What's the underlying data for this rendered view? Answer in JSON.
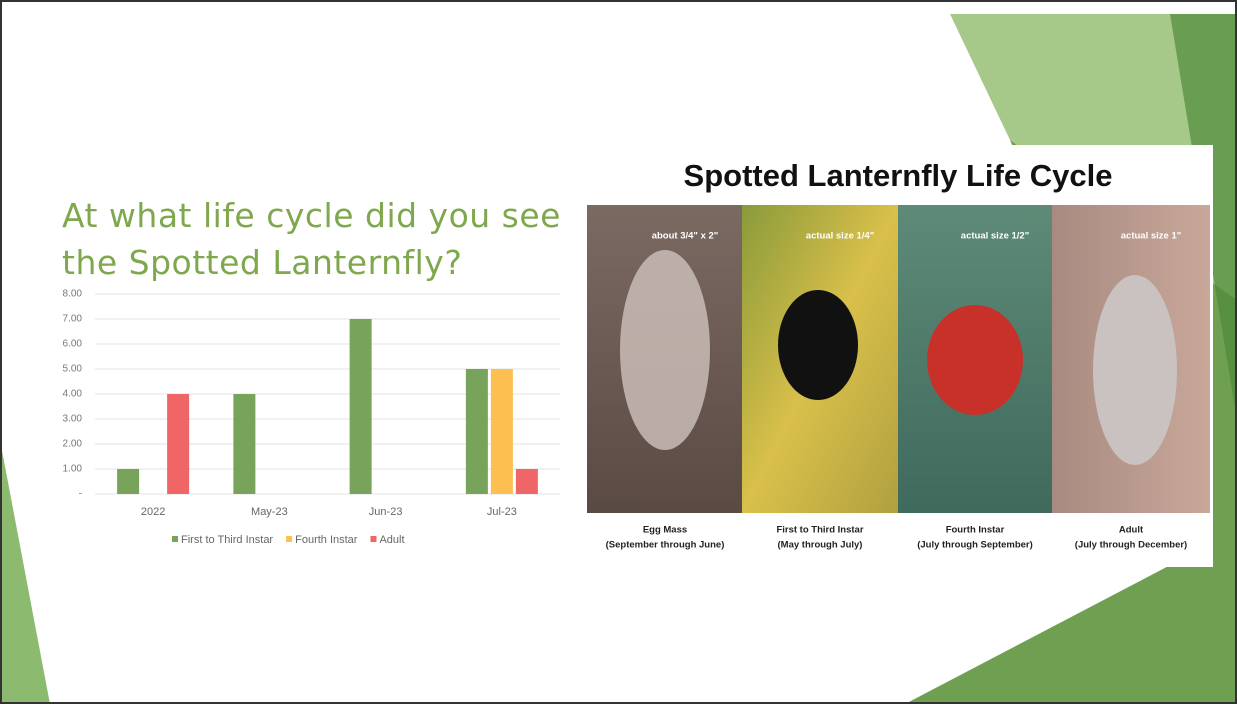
{
  "chart_data": {
    "type": "bar",
    "title": "At what life cycle did you see the Spotted Lanternfly?",
    "categories": [
      "2022",
      "May-23",
      "Jun-23",
      "Jul-23"
    ],
    "series": [
      {
        "name": "First to Third Instar",
        "color": "#78a35a",
        "values": [
          1,
          4,
          7,
          5
        ]
      },
      {
        "name": "Fourth Instar",
        "color": "#fdbf4f",
        "values": [
          null,
          null,
          null,
          5
        ]
      },
      {
        "name": "Adult",
        "color": "#f06566",
        "values": [
          4,
          null,
          null,
          1
        ]
      }
    ],
    "ylim": [
      0,
      8
    ],
    "yticks": [
      {
        "value": 0,
        "label": "-"
      },
      {
        "value": 1,
        "label": "1.00"
      },
      {
        "value": 2,
        "label": "2.00"
      },
      {
        "value": 3,
        "label": "3.00"
      },
      {
        "value": 4,
        "label": "4.00"
      },
      {
        "value": 5,
        "label": "5.00"
      },
      {
        "value": 6,
        "label": "6.00"
      },
      {
        "value": 7,
        "label": "7.00"
      },
      {
        "value": 8,
        "label": "8.00"
      }
    ],
    "grid": true,
    "legend": "bottom"
  },
  "life_cycle_panel": {
    "title": "Spotted Lanternfly Life Cycle",
    "stages": [
      {
        "size": "about 3/4\" x 2\"",
        "name": "Egg Mass",
        "period": "(September through June)"
      },
      {
        "size": "actual size 1/4\"",
        "name": "First to Third Instar",
        "period": "(May through July)"
      },
      {
        "size": "actual size 1/2\"",
        "name": "Fourth Instar",
        "period": "(July through September)"
      },
      {
        "size": "actual size 1\"",
        "name": "Adult",
        "period": "(July through December)"
      }
    ]
  }
}
